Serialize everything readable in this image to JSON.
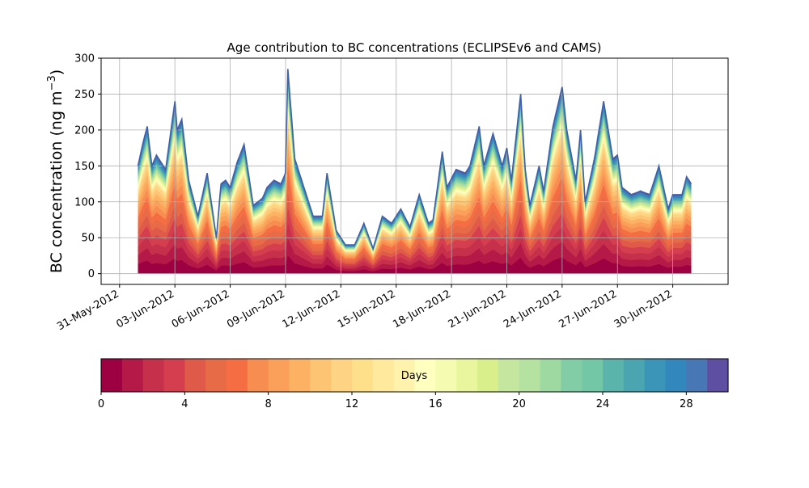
{
  "chart_data": {
    "type": "area",
    "title": "Age contribution to BC concentrations (ECLIPSEv6 and CAMS)",
    "ylabel_main": "BC concentration (ng m",
    "ylabel_exp": "−3",
    "ylabel_close": ")",
    "xlabel": "",
    "grid": true,
    "ylim": [
      -15,
      300
    ],
    "xlim": [
      "2012-05-30",
      "2012-07-03"
    ],
    "ytick_labels": [
      "0",
      "50",
      "100",
      "150",
      "200",
      "250",
      "300"
    ],
    "yticks": [
      0,
      50,
      100,
      150,
      200,
      250,
      300
    ],
    "xtick_labels": [
      "31-May-2012",
      "03-Jun-2012",
      "06-Jun-2012",
      "09-Jun-2012",
      "12-Jun-2012",
      "15-Jun-2012",
      "18-Jun-2012",
      "21-Jun-2012",
      "24-Jun-2012",
      "27-Jun-2012",
      "30-Jun-2012"
    ],
    "xticks": [
      "2012-05-31",
      "2012-06-03",
      "2012-06-06",
      "2012-06-09",
      "2012-06-12",
      "2012-06-15",
      "2012-06-18",
      "2012-06-21",
      "2012-06-24",
      "2012-06-27",
      "2012-06-30"
    ],
    "total_series": {
      "name": "total",
      "x": [
        "2012-06-01",
        "2012-06-01",
        "2012-06-01",
        "2012-06-01",
        "2012-06-02",
        "2012-06-02",
        "2012-06-03",
        "2012-06-03",
        "2012-06-03",
        "2012-06-03",
        "2012-06-04",
        "2012-06-04",
        "2012-06-05",
        "2012-06-05",
        "2012-06-05",
        "2012-06-06",
        "2012-06-06",
        "2012-06-06",
        "2012-06-07",
        "2012-06-07",
        "2012-06-08",
        "2012-06-08",
        "2012-06-08",
        "2012-06-09",
        "2012-06-09",
        "2012-06-09",
        "2012-06-10",
        "2012-06-10",
        "2012-06-11",
        "2012-06-11",
        "2012-06-11",
        "2012-06-12",
        "2012-06-12",
        "2012-06-13",
        "2012-06-13",
        "2012-06-14",
        "2012-06-14",
        "2012-06-15",
        "2012-06-15",
        "2012-06-16",
        "2012-06-16",
        "2012-06-17",
        "2012-06-17",
        "2012-06-17",
        "2012-06-18",
        "2012-06-18",
        "2012-06-19",
        "2012-06-19",
        "2012-06-19",
        "2012-06-20",
        "2012-06-20",
        "2012-06-21",
        "2012-06-21",
        "2012-06-21",
        "2012-06-22",
        "2012-06-22",
        "2012-06-22",
        "2012-06-23",
        "2012-06-23",
        "2012-06-24",
        "2012-06-24",
        "2012-06-24",
        "2012-06-25",
        "2012-06-25",
        "2012-06-25",
        "2012-06-26",
        "2012-06-26",
        "2012-06-27",
        "2012-06-27",
        "2012-06-27",
        "2012-06-28",
        "2012-06-28",
        "2012-06-29",
        "2012-06-29",
        "2012-06-30",
        "2012-06-30",
        "2012-06-30",
        "2012-07-01"
      ],
      "hour": [
        0,
        6,
        12,
        18,
        0,
        12,
        0,
        3,
        9,
        18,
        6,
        18,
        6,
        12,
        18,
        0,
        9,
        18,
        6,
        18,
        0,
        9,
        18,
        0,
        3,
        12,
        0,
        12,
        0,
        6,
        18,
        6,
        18,
        6,
        18,
        6,
        18,
        6,
        18,
        6,
        18,
        0,
        12,
        18,
        6,
        18,
        0,
        12,
        18,
        6,
        18,
        0,
        6,
        18,
        0,
        6,
        18,
        0,
        12,
        0,
        6,
        18,
        0,
        6,
        18,
        6,
        18,
        0,
        6,
        18,
        6,
        18,
        6,
        18,
        0,
        12,
        18,
        0
      ],
      "y": [
        150,
        180,
        205,
        150,
        165,
        145,
        240,
        200,
        215,
        130,
        80,
        140,
        50,
        125,
        130,
        120,
        155,
        180,
        95,
        105,
        120,
        130,
        125,
        140,
        285,
        160,
        120,
        80,
        80,
        140,
        60,
        40,
        40,
        70,
        35,
        80,
        70,
        90,
        65,
        110,
        70,
        75,
        170,
        120,
        145,
        140,
        150,
        205,
        150,
        195,
        150,
        175,
        130,
        250,
        145,
        95,
        150,
        115,
        205,
        260,
        200,
        130,
        200,
        100,
        160,
        240,
        160,
        165,
        120,
        110,
        115,
        110,
        150,
        90,
        110,
        110,
        135,
        125
      ]
    },
    "colorbar": {
      "label": "Days",
      "min": 0,
      "max": 30,
      "tick_labels": [
        "0",
        "4",
        "8",
        "12",
        "16",
        "20",
        "24",
        "28"
      ],
      "ticks": [
        0,
        4,
        8,
        12,
        16,
        20,
        24,
        28
      ],
      "colors": [
        "#9e0142",
        "#b41947",
        "#c7304b",
        "#d53e4f",
        "#e05a4a",
        "#e86b48",
        "#f46d43",
        "#f88d52",
        "#fba05b",
        "#fdb263",
        "#fdc473",
        "#fed384",
        "#fee08b",
        "#fee99d",
        "#fff2ad",
        "#ffffbf",
        "#f6fbb2",
        "#eaf69e",
        "#d9ef8b",
        "#c4e69e",
        "#b5e1a1",
        "#9ed9a1",
        "#82cda5",
        "#73c7a6",
        "#5ab4ac",
        "#4ba5b0",
        "#3a95b8",
        "#3288bd",
        "#4777b5",
        "#5e4fa2"
      ]
    }
  }
}
